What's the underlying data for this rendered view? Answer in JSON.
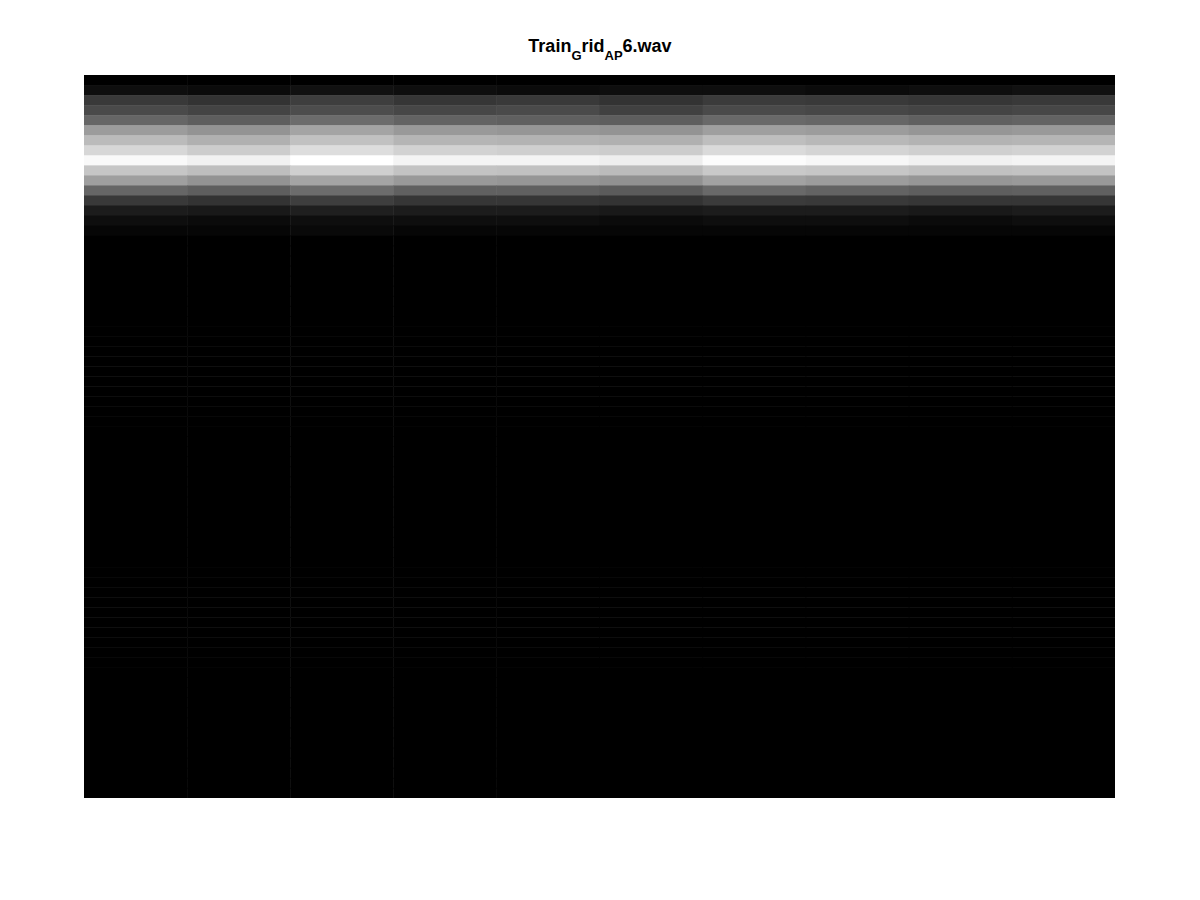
{
  "chart_data": {
    "type": "heatmap",
    "title": [
      "Train",
      "G",
      "rid",
      "AP",
      "6.wav"
    ],
    "tick_labels": false,
    "cells": [
      [
        0,
        0,
        0,
        0,
        0,
        0,
        0,
        0,
        0,
        0
      ],
      [
        0.05,
        0.04,
        0.06,
        0.05,
        0.04,
        0.05,
        0.05,
        0.04,
        0.05,
        0.06
      ],
      [
        0.2,
        0.18,
        0.22,
        0.19,
        0.2,
        0.18,
        0.21,
        0.2,
        0.19,
        0.2
      ],
      [
        0.26,
        0.24,
        0.27,
        0.25,
        0.26,
        0.23,
        0.26,
        0.25,
        0.24,
        0.25
      ],
      [
        0.36,
        0.33,
        0.38,
        0.35,
        0.34,
        0.33,
        0.37,
        0.36,
        0.34,
        0.35
      ],
      [
        0.55,
        0.52,
        0.58,
        0.54,
        0.53,
        0.52,
        0.56,
        0.55,
        0.53,
        0.54
      ],
      [
        0.66,
        0.62,
        0.68,
        0.64,
        0.63,
        0.62,
        0.67,
        0.65,
        0.63,
        0.64
      ],
      [
        0.76,
        0.72,
        0.78,
        0.74,
        0.73,
        0.72,
        0.77,
        0.75,
        0.73,
        0.74
      ],
      [
        0.88,
        0.85,
        0.9,
        0.86,
        0.86,
        0.84,
        0.89,
        0.87,
        0.85,
        0.86
      ],
      [
        0.7,
        0.67,
        0.73,
        0.69,
        0.68,
        0.66,
        0.71,
        0.7,
        0.68,
        0.69
      ],
      [
        0.56,
        0.52,
        0.58,
        0.54,
        0.53,
        0.51,
        0.57,
        0.55,
        0.53,
        0.54
      ],
      [
        0.36,
        0.33,
        0.38,
        0.34,
        0.34,
        0.32,
        0.37,
        0.35,
        0.33,
        0.34
      ],
      [
        0.2,
        0.18,
        0.22,
        0.19,
        0.19,
        0.18,
        0.21,
        0.2,
        0.19,
        0.19
      ],
      [
        0.1,
        0.09,
        0.11,
        0.1,
        0.1,
        0.09,
        0.1,
        0.1,
        0.09,
        0.1
      ],
      [
        0.05,
        0.04,
        0.05,
        0.05,
        0.05,
        0.04,
        0.05,
        0.05,
        0.04,
        0.05
      ],
      [
        0.02,
        0.02,
        0.03,
        0.02,
        0.02,
        0.02,
        0.02,
        0.02,
        0.02,
        0.02
      ],
      [
        0,
        0,
        0,
        0,
        0,
        0,
        0,
        0,
        0,
        0
      ],
      [
        0,
        0,
        0,
        0,
        0,
        0,
        0,
        0,
        0,
        0
      ],
      [
        0,
        0,
        0,
        0,
        0,
        0,
        0,
        0,
        0,
        0
      ],
      [
        0,
        0,
        0,
        0,
        0,
        0,
        0,
        0,
        0,
        0
      ],
      [
        0,
        0,
        0,
        0,
        0,
        0,
        0,
        0,
        0,
        0
      ],
      [
        0,
        0,
        0,
        0,
        0,
        0,
        0,
        0,
        0,
        0
      ],
      [
        0,
        0,
        0,
        0,
        0,
        0,
        0,
        0,
        0,
        0
      ],
      [
        0,
        0,
        0,
        0,
        0,
        0,
        0,
        0,
        0,
        0
      ],
      [
        0,
        0,
        0,
        0,
        0,
        0,
        0,
        0,
        0,
        0
      ],
      [
        0,
        0,
        0,
        0,
        0,
        0,
        0,
        0,
        0,
        0
      ],
      [
        0,
        0,
        0,
        0,
        0,
        0,
        0,
        0,
        0,
        0
      ],
      [
        0,
        0,
        0,
        0,
        0,
        0,
        0,
        0,
        0,
        0
      ],
      [
        0,
        0,
        0,
        0,
        0,
        0,
        0,
        0,
        0,
        0
      ],
      [
        0,
        0,
        0,
        0,
        0,
        0,
        0,
        0,
        0,
        0
      ],
      [
        0,
        0,
        0,
        0,
        0,
        0,
        0,
        0,
        0,
        0
      ],
      [
        0,
        0,
        0,
        0,
        0,
        0,
        0,
        0,
        0,
        0
      ],
      [
        0,
        0,
        0,
        0,
        0,
        0,
        0,
        0,
        0,
        0
      ],
      [
        0,
        0,
        0,
        0,
        0,
        0,
        0,
        0,
        0,
        0
      ],
      [
        0,
        0,
        0,
        0,
        0,
        0,
        0,
        0,
        0,
        0
      ],
      [
        0,
        0,
        0,
        0,
        0,
        0,
        0,
        0,
        0,
        0
      ],
      [
        0,
        0,
        0,
        0,
        0,
        0,
        0,
        0,
        0,
        0
      ],
      [
        0,
        0,
        0,
        0,
        0,
        0,
        0,
        0,
        0,
        0
      ],
      [
        0,
        0,
        0,
        0,
        0,
        0,
        0,
        0,
        0,
        0
      ],
      [
        0,
        0,
        0,
        0,
        0,
        0,
        0,
        0,
        0,
        0
      ],
      [
        0,
        0,
        0,
        0,
        0,
        0,
        0,
        0,
        0,
        0
      ],
      [
        0,
        0,
        0,
        0,
        0,
        0,
        0,
        0,
        0,
        0
      ],
      [
        0,
        0,
        0,
        0,
        0,
        0,
        0,
        0,
        0,
        0
      ],
      [
        0,
        0,
        0,
        0,
        0,
        0,
        0,
        0,
        0,
        0
      ],
      [
        0,
        0,
        0,
        0,
        0,
        0,
        0,
        0,
        0,
        0
      ],
      [
        0,
        0,
        0,
        0,
        0,
        0,
        0,
        0,
        0,
        0
      ],
      [
        0,
        0,
        0,
        0,
        0,
        0,
        0,
        0,
        0,
        0
      ],
      [
        0,
        0,
        0,
        0,
        0,
        0,
        0,
        0,
        0,
        0
      ],
      [
        0,
        0,
        0,
        0,
        0,
        0,
        0,
        0,
        0,
        0
      ],
      [
        0,
        0,
        0,
        0,
        0,
        0,
        0,
        0,
        0,
        0
      ],
      [
        0,
        0,
        0,
        0,
        0,
        0,
        0,
        0,
        0,
        0
      ],
      [
        0,
        0,
        0,
        0,
        0,
        0,
        0,
        0,
        0,
        0
      ],
      [
        0,
        0,
        0,
        0,
        0,
        0,
        0,
        0,
        0,
        0
      ],
      [
        0,
        0,
        0,
        0,
        0,
        0,
        0,
        0,
        0,
        0
      ],
      [
        0,
        0,
        0,
        0,
        0,
        0,
        0,
        0,
        0,
        0
      ],
      [
        0,
        0,
        0,
        0,
        0,
        0,
        0,
        0,
        0,
        0
      ],
      [
        0,
        0,
        0,
        0,
        0,
        0,
        0,
        0,
        0,
        0
      ],
      [
        0,
        0,
        0,
        0,
        0,
        0,
        0,
        0,
        0,
        0
      ],
      [
        0,
        0,
        0,
        0,
        0,
        0,
        0,
        0,
        0,
        0
      ],
      [
        0,
        0,
        0,
        0,
        0,
        0,
        0,
        0,
        0,
        0
      ],
      [
        0,
        0,
        0,
        0,
        0,
        0,
        0,
        0,
        0,
        0
      ],
      [
        0,
        0,
        0,
        0,
        0,
        0,
        0,
        0,
        0,
        0
      ],
      [
        0,
        0,
        0,
        0,
        0,
        0,
        0,
        0,
        0,
        0
      ],
      [
        0,
        0,
        0,
        0,
        0,
        0,
        0,
        0,
        0,
        0
      ],
      [
        0,
        0,
        0,
        0,
        0,
        0,
        0,
        0,
        0,
        0
      ],
      [
        0,
        0,
        0,
        0,
        0,
        0,
        0,
        0,
        0,
        0
      ],
      [
        0,
        0,
        0,
        0,
        0,
        0,
        0,
        0,
        0,
        0
      ],
      [
        0,
        0,
        0,
        0,
        0,
        0,
        0,
        0,
        0,
        0
      ],
      [
        0,
        0,
        0,
        0,
        0,
        0,
        0,
        0,
        0,
        0
      ],
      [
        0,
        0,
        0,
        0,
        0,
        0,
        0,
        0,
        0,
        0
      ],
      [
        0,
        0,
        0,
        0,
        0,
        0,
        0,
        0,
        0,
        0
      ],
      [
        0,
        0,
        0,
        0,
        0,
        0,
        0,
        0,
        0,
        0
      ]
    ]
  }
}
